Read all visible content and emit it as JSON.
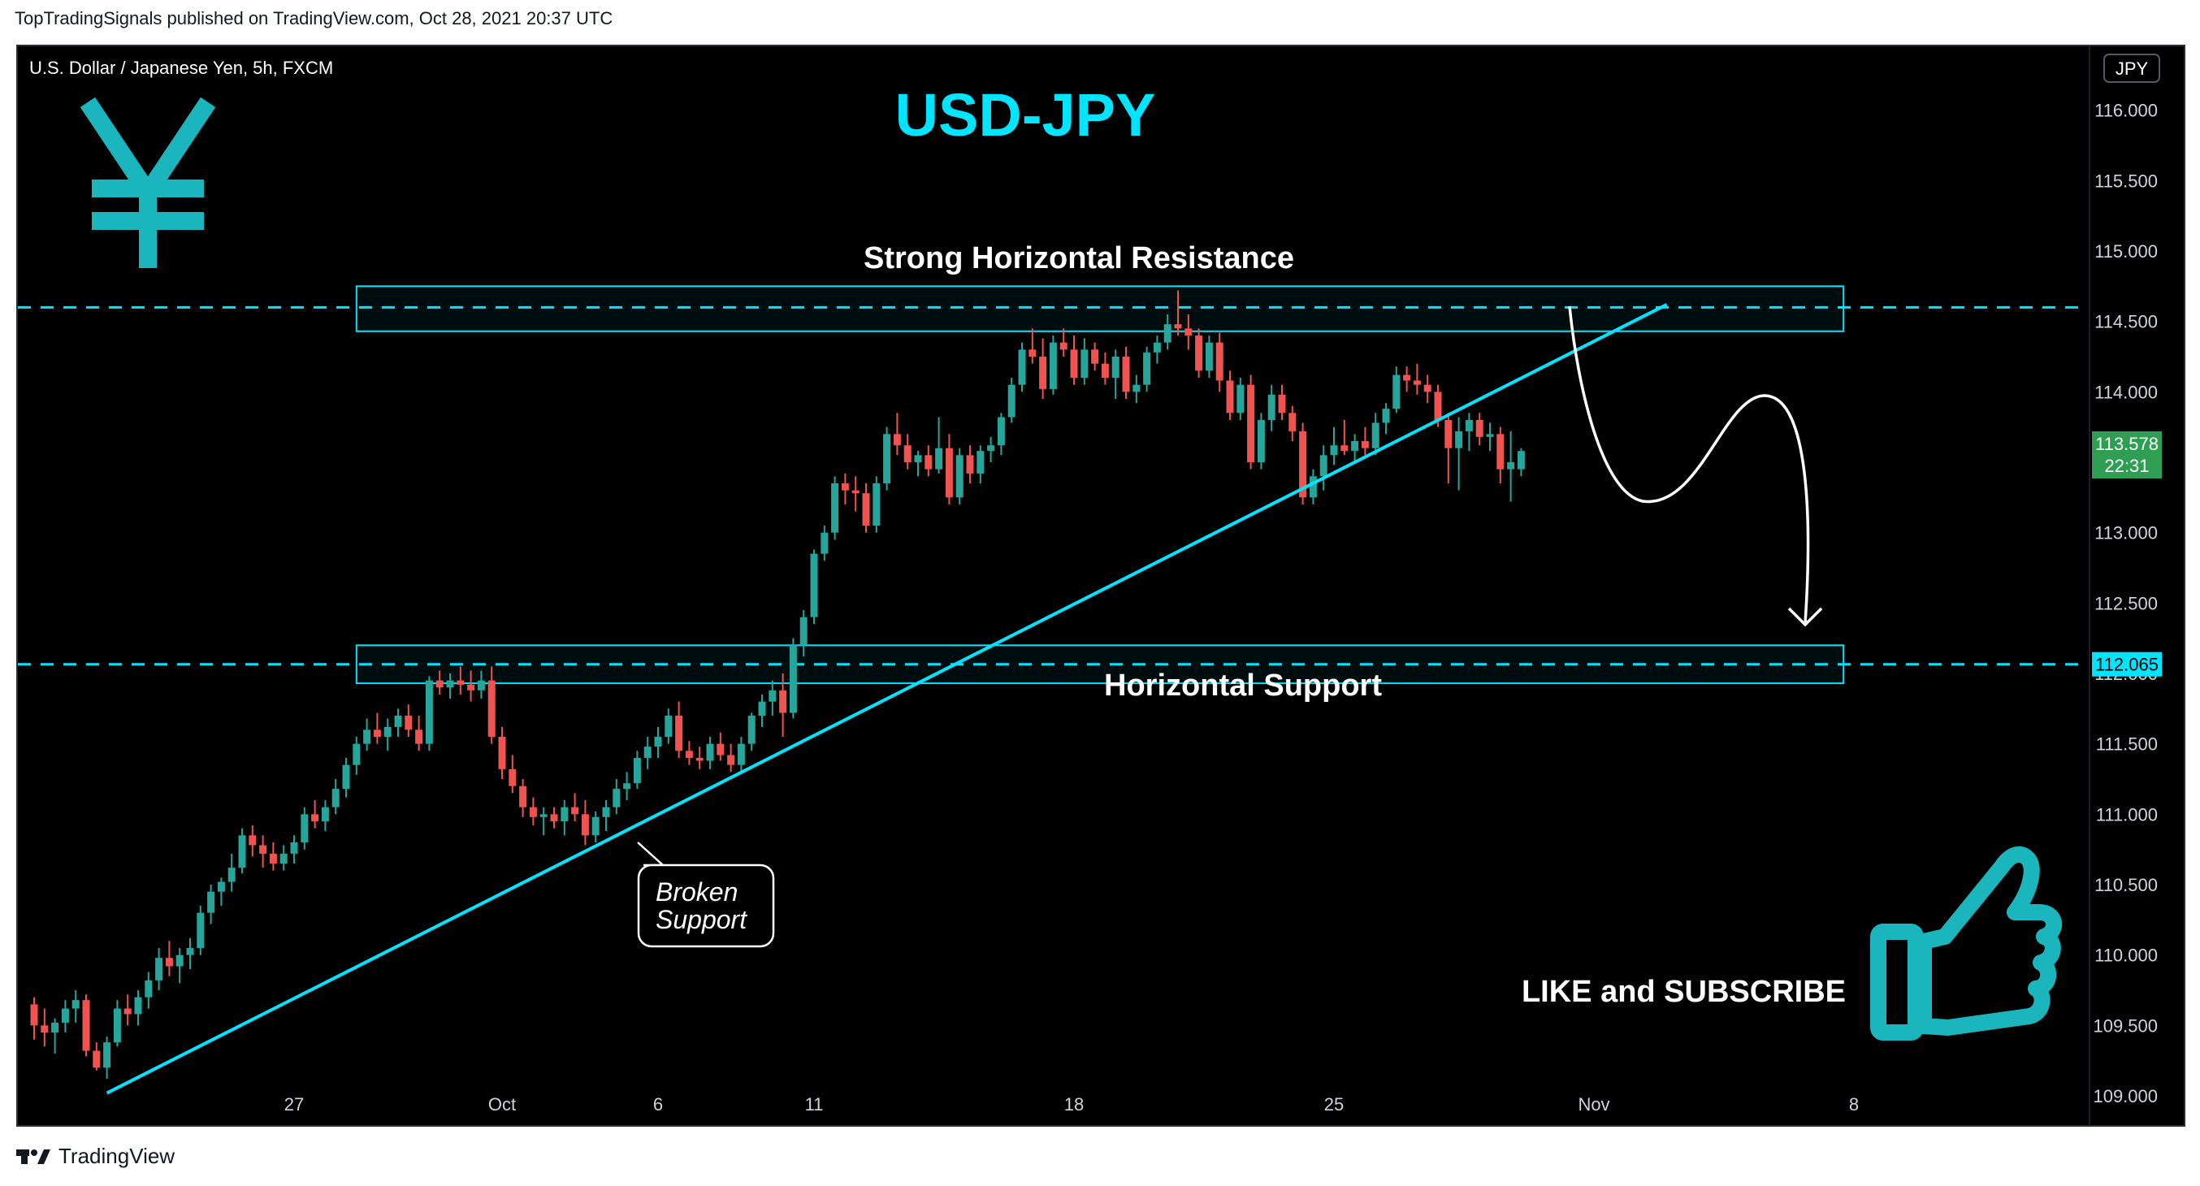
{
  "publish_caption": "TopTradingSignals published on TradingView.com, Oct 28, 2021 20:37 UTC",
  "footer_brand": "TradingView",
  "chart_data": {
    "type": "candlestick",
    "symbol_label": "U.S. Dollar / Japanese Yen, 5h, FXCM",
    "title": "USD-JPY",
    "currency_badge": "JPY",
    "ylim": [
      108.85,
      116.35
    ],
    "y_ticks": [
      "116.000",
      "115.500",
      "115.000",
      "114.500",
      "114.000",
      "113.500",
      "113.000",
      "112.500",
      "112.000",
      "111.500",
      "111.000",
      "110.500",
      "110.000",
      "109.500",
      "109.000"
    ],
    "x_ticks": [
      {
        "label": "27",
        "day": 5
      },
      {
        "label": "Oct",
        "day": 9
      },
      {
        "label": "6",
        "day": 12
      },
      {
        "label": "11",
        "day": 15
      },
      {
        "label": "18",
        "day": 20
      },
      {
        "label": "25",
        "day": 25
      },
      {
        "label": "Nov",
        "day": 30
      },
      {
        "label": "8",
        "day": 35
      }
    ],
    "last_price": "113.578",
    "countdown": "22:31",
    "level_price": "112.065",
    "resistance_label": "Strong Horizontal Resistance",
    "support_label": "Horizontal Support",
    "callout_line1": "Broken",
    "callout_line2": "Support",
    "cta_text": "LIKE and SUBSCRIBE",
    "zones": [
      {
        "name": "resistance",
        "day_start": 6.2,
        "day_end": 34.8,
        "low": 114.43,
        "high": 114.75,
        "mid": 114.6
      },
      {
        "name": "support",
        "day_start": 6.2,
        "day_end": 34.8,
        "low": 111.93,
        "high": 112.2,
        "mid": 112.065
      }
    ],
    "trendline": {
      "day_start": 1.4,
      "price_start": 109.02,
      "day_end": 31.4,
      "price_end": 114.62
    },
    "colors": {
      "up": "#26a69a",
      "down": "#ef5350",
      "accent": "#00e5ff",
      "price_tag": "#26a69a"
    },
    "candles": [
      [
        0.0,
        109.65,
        109.7,
        109.4,
        109.5
      ],
      [
        0.2,
        109.5,
        109.62,
        109.35,
        109.45
      ],
      [
        0.4,
        109.45,
        109.55,
        109.3,
        109.52
      ],
      [
        0.6,
        109.52,
        109.68,
        109.45,
        109.62
      ],
      [
        0.8,
        109.62,
        109.75,
        109.52,
        109.68
      ],
      [
        1.0,
        109.68,
        109.72,
        109.28,
        109.32
      ],
      [
        1.2,
        109.32,
        109.38,
        109.18,
        109.2
      ],
      [
        1.4,
        109.2,
        109.42,
        109.12,
        109.38
      ],
      [
        1.6,
        109.38,
        109.68,
        109.35,
        109.62
      ],
      [
        1.8,
        109.62,
        109.72,
        109.5,
        109.58
      ],
      [
        2.0,
        109.58,
        109.75,
        109.5,
        109.7
      ],
      [
        2.2,
        109.7,
        109.88,
        109.62,
        109.82
      ],
      [
        2.4,
        109.82,
        110.05,
        109.75,
        109.98
      ],
      [
        2.6,
        109.98,
        110.1,
        109.85,
        109.92
      ],
      [
        2.8,
        109.92,
        110.05,
        109.8,
        110.0
      ],
      [
        3.0,
        110.0,
        110.12,
        109.9,
        110.05
      ],
      [
        3.2,
        110.05,
        110.35,
        110.0,
        110.3
      ],
      [
        3.4,
        110.3,
        110.5,
        110.22,
        110.45
      ],
      [
        3.6,
        110.45,
        110.55,
        110.35,
        110.52
      ],
      [
        3.8,
        110.52,
        110.72,
        110.45,
        110.62
      ],
      [
        4.0,
        110.62,
        110.9,
        110.58,
        110.85
      ],
      [
        4.2,
        110.85,
        110.92,
        110.7,
        110.78
      ],
      [
        4.4,
        110.78,
        110.85,
        110.62,
        110.72
      ],
      [
        4.6,
        110.72,
        110.8,
        110.6,
        110.65
      ],
      [
        4.8,
        110.65,
        110.78,
        110.6,
        110.72
      ],
      [
        5.0,
        110.72,
        110.85,
        110.65,
        110.8
      ],
      [
        5.2,
        110.8,
        111.05,
        110.75,
        111.0
      ],
      [
        5.4,
        111.0,
        111.1,
        110.9,
        110.95
      ],
      [
        5.6,
        110.95,
        111.1,
        110.88,
        111.05
      ],
      [
        5.8,
        111.05,
        111.25,
        111.0,
        111.18
      ],
      [
        6.0,
        111.18,
        111.4,
        111.12,
        111.35
      ],
      [
        6.2,
        111.35,
        111.55,
        111.28,
        111.5
      ],
      [
        6.4,
        111.5,
        111.68,
        111.45,
        111.6
      ],
      [
        6.6,
        111.6,
        111.72,
        111.5,
        111.55
      ],
      [
        6.8,
        111.55,
        111.68,
        111.45,
        111.62
      ],
      [
        7.0,
        111.62,
        111.75,
        111.55,
        111.7
      ],
      [
        7.2,
        111.7,
        111.78,
        111.55,
        111.6
      ],
      [
        7.4,
        111.6,
        111.7,
        111.45,
        111.5
      ],
      [
        7.6,
        111.5,
        111.98,
        111.45,
        111.95
      ],
      [
        7.8,
        111.95,
        112.02,
        111.85,
        111.9
      ],
      [
        8.0,
        111.9,
        112.0,
        111.82,
        111.95
      ],
      [
        8.2,
        111.95,
        112.05,
        111.85,
        111.92
      ],
      [
        8.4,
        111.92,
        112.02,
        111.8,
        111.88
      ],
      [
        8.6,
        111.88,
        112.02,
        111.82,
        111.95
      ],
      [
        8.8,
        111.95,
        112.05,
        111.5,
        111.55
      ],
      [
        9.0,
        111.55,
        111.62,
        111.25,
        111.32
      ],
      [
        9.2,
        111.32,
        111.42,
        111.15,
        111.2
      ],
      [
        9.4,
        111.2,
        111.25,
        110.98,
        111.05
      ],
      [
        9.6,
        111.05,
        111.12,
        110.92,
        110.98
      ],
      [
        9.8,
        110.98,
        111.05,
        110.85,
        111.0
      ],
      [
        10.0,
        111.0,
        111.05,
        110.9,
        110.95
      ],
      [
        10.2,
        110.95,
        111.1,
        110.85,
        111.05
      ],
      [
        10.4,
        111.05,
        111.15,
        110.95,
        111.0
      ],
      [
        10.6,
        111.0,
        111.1,
        110.78,
        110.85
      ],
      [
        10.8,
        110.85,
        111.02,
        110.8,
        110.98
      ],
      [
        11.0,
        110.98,
        111.1,
        110.88,
        111.05
      ],
      [
        11.2,
        111.05,
        111.25,
        111.0,
        111.18
      ],
      [
        11.4,
        111.18,
        111.3,
        111.1,
        111.22
      ],
      [
        11.6,
        111.22,
        111.45,
        111.18,
        111.4
      ],
      [
        11.8,
        111.4,
        111.55,
        111.32,
        111.48
      ],
      [
        12.0,
        111.48,
        111.62,
        111.4,
        111.55
      ],
      [
        12.2,
        111.55,
        111.75,
        111.5,
        111.7
      ],
      [
        12.4,
        111.7,
        111.8,
        111.4,
        111.45
      ],
      [
        12.6,
        111.45,
        111.52,
        111.35,
        111.4
      ],
      [
        12.8,
        111.4,
        111.48,
        111.32,
        111.38
      ],
      [
        13.0,
        111.38,
        111.55,
        111.32,
        111.5
      ],
      [
        13.2,
        111.5,
        111.58,
        111.38,
        111.42
      ],
      [
        13.4,
        111.42,
        111.5,
        111.3,
        111.35
      ],
      [
        13.6,
        111.35,
        111.55,
        111.3,
        111.5
      ],
      [
        13.8,
        111.5,
        111.72,
        111.45,
        111.7
      ],
      [
        14.0,
        111.7,
        111.85,
        111.62,
        111.8
      ],
      [
        14.2,
        111.8,
        111.95,
        111.7,
        111.88
      ],
      [
        14.4,
        111.88,
        112.0,
        111.55,
        111.72
      ],
      [
        14.6,
        111.72,
        112.25,
        111.68,
        112.2
      ],
      [
        14.8,
        112.2,
        112.45,
        112.12,
        112.4
      ],
      [
        15.0,
        112.4,
        112.88,
        112.35,
        112.85
      ],
      [
        15.2,
        112.85,
        113.05,
        112.8,
        113.0
      ],
      [
        15.4,
        113.0,
        113.4,
        112.95,
        113.35
      ],
      [
        15.6,
        113.35,
        113.42,
        113.2,
        113.3
      ],
      [
        15.8,
        113.3,
        113.4,
        113.15,
        113.28
      ],
      [
        16.0,
        113.28,
        113.35,
        113.0,
        113.05
      ],
      [
        16.2,
        113.05,
        113.4,
        113.0,
        113.35
      ],
      [
        16.4,
        113.35,
        113.75,
        113.3,
        113.7
      ],
      [
        16.6,
        113.7,
        113.85,
        113.55,
        113.62
      ],
      [
        16.8,
        113.62,
        113.7,
        113.45,
        113.5
      ],
      [
        17.0,
        113.5,
        113.58,
        113.4,
        113.55
      ],
      [
        17.2,
        113.55,
        113.62,
        113.4,
        113.45
      ],
      [
        17.4,
        113.45,
        113.82,
        113.42,
        113.6
      ],
      [
        17.6,
        113.6,
        113.7,
        113.2,
        113.25
      ],
      [
        17.8,
        113.25,
        113.6,
        113.2,
        113.55
      ],
      [
        18.0,
        113.55,
        113.62,
        113.35,
        113.42
      ],
      [
        18.2,
        113.42,
        113.62,
        113.35,
        113.58
      ],
      [
        18.4,
        113.58,
        113.68,
        113.5,
        113.62
      ],
      [
        18.6,
        113.62,
        113.85,
        113.55,
        113.82
      ],
      [
        18.8,
        113.82,
        114.1,
        113.78,
        114.05
      ],
      [
        19.0,
        114.05,
        114.35,
        114.0,
        114.3
      ],
      [
        19.2,
        114.3,
        114.45,
        114.2,
        114.25
      ],
      [
        19.4,
        114.25,
        114.38,
        113.95,
        114.02
      ],
      [
        19.6,
        114.02,
        114.4,
        113.98,
        114.35
      ],
      [
        19.8,
        114.35,
        114.45,
        114.25,
        114.3
      ],
      [
        20.0,
        114.3,
        114.4,
        114.05,
        114.1
      ],
      [
        20.2,
        114.1,
        114.38,
        114.05,
        114.3
      ],
      [
        20.4,
        114.3,
        114.35,
        114.15,
        114.2
      ],
      [
        20.6,
        114.2,
        114.28,
        114.05,
        114.1
      ],
      [
        20.8,
        114.1,
        114.3,
        113.95,
        114.25
      ],
      [
        21.0,
        114.25,
        114.32,
        113.95,
        114.0
      ],
      [
        21.2,
        114.0,
        114.12,
        113.92,
        114.05
      ],
      [
        21.4,
        114.05,
        114.32,
        114.0,
        114.28
      ],
      [
        21.6,
        114.28,
        114.4,
        114.2,
        114.35
      ],
      [
        21.8,
        114.35,
        114.55,
        114.3,
        114.48
      ],
      [
        22.0,
        114.48,
        114.72,
        114.4,
        114.45
      ],
      [
        22.2,
        114.45,
        114.55,
        114.3,
        114.4
      ],
      [
        22.4,
        114.4,
        114.45,
        114.1,
        114.15
      ],
      [
        22.6,
        114.15,
        114.4,
        114.1,
        114.35
      ],
      [
        22.8,
        114.35,
        114.42,
        114.0,
        114.08
      ],
      [
        23.0,
        114.08,
        114.15,
        113.8,
        113.85
      ],
      [
        23.2,
        113.85,
        114.1,
        113.8,
        114.05
      ],
      [
        23.4,
        114.05,
        114.12,
        113.45,
        113.5
      ],
      [
        23.6,
        113.5,
        113.85,
        113.45,
        113.8
      ],
      [
        23.8,
        113.8,
        114.05,
        113.72,
        113.98
      ],
      [
        24.0,
        113.98,
        114.05,
        113.8,
        113.85
      ],
      [
        24.2,
        113.85,
        113.9,
        113.65,
        113.72
      ],
      [
        24.4,
        113.72,
        113.78,
        113.2,
        113.25
      ],
      [
        24.6,
        113.25,
        113.45,
        113.2,
        113.4
      ],
      [
        24.8,
        113.4,
        113.62,
        113.3,
        113.55
      ],
      [
        25.0,
        113.55,
        113.75,
        113.48,
        113.62
      ],
      [
        25.2,
        113.62,
        113.8,
        113.55,
        113.58
      ],
      [
        25.4,
        113.58,
        113.7,
        113.5,
        113.65
      ],
      [
        25.6,
        113.65,
        113.75,
        113.55,
        113.6
      ],
      [
        25.8,
        113.6,
        113.85,
        113.55,
        113.78
      ],
      [
        26.0,
        113.78,
        113.92,
        113.7,
        113.88
      ],
      [
        26.2,
        113.88,
        114.18,
        113.85,
        114.12
      ],
      [
        26.4,
        114.12,
        114.18,
        114.0,
        114.08
      ],
      [
        26.6,
        114.08,
        114.2,
        113.98,
        114.05
      ],
      [
        26.8,
        114.05,
        114.12,
        113.92,
        114.0
      ],
      [
        27.0,
        114.0,
        114.05,
        113.75,
        113.8
      ],
      [
        27.2,
        113.8,
        113.85,
        113.35,
        113.6
      ],
      [
        27.4,
        113.6,
        113.82,
        113.3,
        113.72
      ],
      [
        27.6,
        113.72,
        113.85,
        113.58,
        113.8
      ],
      [
        27.8,
        113.8,
        113.85,
        113.62,
        113.68
      ],
      [
        28.0,
        113.68,
        113.78,
        113.58,
        113.7
      ],
      [
        28.2,
        113.7,
        113.75,
        113.35,
        113.45
      ],
      [
        28.4,
        113.45,
        113.72,
        113.22,
        113.5
      ],
      [
        28.6,
        113.45,
        113.6,
        113.4,
        113.58
      ]
    ]
  }
}
